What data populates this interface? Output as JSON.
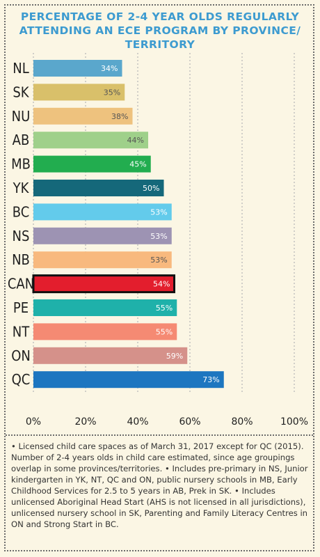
{
  "chart_data": {
    "type": "bar",
    "orientation": "horizontal",
    "title": "PERCENTAGE OF 2-4 YEAR OLDS REGULARLY ATTENDING AN ECE PROGRAM BY PROVINCE/ TERRITORY",
    "categories": [
      "NL",
      "SK",
      "NU",
      "AB",
      "MB",
      "YK",
      "BC",
      "NS",
      "NB",
      "CAN",
      "PE",
      "NT",
      "ON",
      "QC"
    ],
    "values": [
      34,
      35,
      38,
      44,
      45,
      50,
      53,
      53,
      53,
      54,
      55,
      55,
      59,
      73
    ],
    "value_labels": [
      "34%",
      "35%",
      "38%",
      "44%",
      "45%",
      "50%",
      "53%",
      "53%",
      "53%",
      "54%",
      "55%",
      "55%",
      "59%",
      "73%"
    ],
    "colors": [
      "#5aa7cc",
      "#d9c06a",
      "#eec27e",
      "#9fd08a",
      "#22ad4f",
      "#15687a",
      "#63cbeb",
      "#9d93b3",
      "#f8b97e",
      "#e31e2d",
      "#1fb1aa",
      "#f58a73",
      "#d5918a",
      "#1d76c0"
    ],
    "highlight": "CAN",
    "xlim": [
      0,
      100
    ],
    "x_ticks": [
      "0%",
      "20%",
      "40%",
      "60%",
      "80%",
      "100%"
    ],
    "grid": true
  },
  "notes": "• Licensed child care spaces as of March 31, 2017 except for QC (2015). Number of 2-4 years olds in child care estimated, since age groupings overlap in some provinces/territories. • Includes pre-primary in NS, Junior kindergarten in YK, NT, QC and ON, public nursery schools in MB, Early Childhood Services for 2.5 to 5 years in AB, Prek in SK. • Includes unlicensed Aboriginal Head Start (AHS is not licensed in all jurisdictions), unlicensed nursery school in SK, Parenting and Family Literacy Centres in ON and Strong Start in BC."
}
